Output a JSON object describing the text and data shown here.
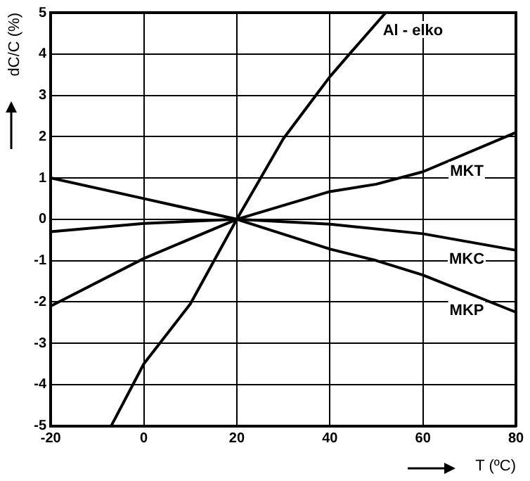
{
  "chart_data": {
    "type": "line",
    "xlabel": "T (ºC)",
    "ylabel": "dC/C (%)",
    "xlim": [
      -20,
      80
    ],
    "xticks": [
      -20,
      0,
      20,
      40,
      60,
      80
    ],
    "ylim": [
      -5,
      5
    ],
    "yticks": [
      -5,
      -4,
      -3,
      -2,
      -1,
      0,
      1,
      2,
      3,
      4,
      5
    ],
    "grid": true,
    "legend": false,
    "marker": "none",
    "line_style": "solid",
    "series": [
      {
        "name": "Al - elko",
        "color": "#000000",
        "x": [
          -7,
          0,
          10,
          20,
          30,
          37,
          40,
          45,
          52
        ],
        "values": [
          -5,
          -3.5,
          -2.05,
          0,
          1.95,
          3.0,
          3.45,
          4.1,
          5
        ]
      },
      {
        "name": "MKT",
        "color": "#000000",
        "x": [
          -20,
          0,
          20,
          40,
          50,
          60,
          80
        ],
        "values": [
          -2.1,
          -0.95,
          0,
          0.67,
          0.85,
          1.15,
          2.1
        ]
      },
      {
        "name": "MKC",
        "color": "#000000",
        "x": [
          -20,
          0,
          20,
          40,
          60,
          80
        ],
        "values": [
          -0.3,
          -0.1,
          0,
          -0.12,
          -0.35,
          -0.75
        ]
      },
      {
        "name": "MKP",
        "color": "#000000",
        "x": [
          -20,
          0,
          20,
          40,
          50,
          60,
          80
        ],
        "values": [
          1,
          0.5,
          0,
          -0.72,
          -1.0,
          -1.35,
          -2.25
        ]
      }
    ]
  }
}
